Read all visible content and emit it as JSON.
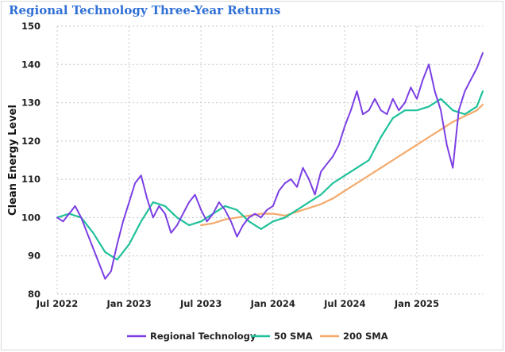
{
  "chart_data": {
    "type": "line",
    "title": "Regional Technology Three-Year Returns",
    "xlabel": "",
    "ylabel": "Clean Energy Level",
    "ylim": [
      80,
      150
    ],
    "yticks": [
      80,
      90,
      100,
      110,
      120,
      130,
      140,
      150
    ],
    "xticks": [
      {
        "label": "Jul 2022",
        "t": 0
      },
      {
        "label": "Jan 2023",
        "t": 6
      },
      {
        "label": "Jul 2023",
        "t": 12
      },
      {
        "label": "Jan 2024",
        "t": 18
      },
      {
        "label": "Jul 2024",
        "t": 24
      },
      {
        "label": "Jan 2025",
        "t": 30
      }
    ],
    "x_unit": "months since Jul 2022",
    "grid": true,
    "legend_position": "bottom",
    "series": [
      {
        "name": "Regional Technology",
        "color": "#7b3fe4",
        "x": [
          0,
          0.5,
          1,
          1.5,
          2,
          2.5,
          3,
          3.5,
          4,
          4.5,
          5,
          5.5,
          6,
          6.5,
          7,
          7.5,
          8,
          8.5,
          9,
          9.5,
          10,
          10.5,
          11,
          11.5,
          12,
          12.5,
          13,
          13.5,
          14,
          14.5,
          15,
          15.5,
          16,
          16.5,
          17,
          17.5,
          18,
          18.5,
          19,
          19.5,
          20,
          20.5,
          21,
          21.5,
          22,
          22.5,
          23,
          23.5,
          24,
          24.5,
          25,
          25.5,
          26,
          26.5,
          27,
          27.5,
          28,
          28.5,
          29,
          29.5,
          30,
          30.5,
          31,
          31.5,
          32,
          32.5,
          33,
          33.5,
          34,
          34.5,
          35,
          35.5
        ],
        "values": [
          100,
          99,
          101,
          103,
          100,
          96,
          92,
          88,
          84,
          86,
          93,
          99,
          104,
          109,
          111,
          105,
          100,
          103,
          101,
          96,
          98,
          101,
          104,
          106,
          102,
          99,
          101,
          104,
          102,
          99,
          95,
          98,
          100,
          101,
          100,
          102,
          103,
          107,
          109,
          110,
          108,
          113,
          110,
          106,
          112,
          114,
          116,
          119,
          124,
          128,
          133,
          127,
          128,
          131,
          128,
          127,
          131,
          128,
          130,
          134,
          131,
          136,
          140,
          133,
          128,
          119,
          113,
          128,
          133,
          136,
          139,
          143
        ]
      },
      {
        "name": "50 SMA",
        "color": "#1fc19a",
        "x": [
          0,
          1,
          2,
          3,
          4,
          5,
          6,
          7,
          8,
          9,
          10,
          11,
          12,
          13,
          14,
          15,
          16,
          17,
          18,
          19,
          20,
          21,
          22,
          23,
          24,
          25,
          26,
          27,
          28,
          29,
          30,
          31,
          32,
          33,
          34,
          35,
          35.5
        ],
        "values": [
          100,
          101,
          100,
          96,
          91,
          89,
          93,
          99,
          104,
          103,
          100,
          98,
          99,
          101,
          103,
          102,
          99,
          97,
          99,
          100,
          102,
          104,
          106,
          109,
          111,
          113,
          115,
          121,
          126,
          128,
          128,
          129,
          131,
          128,
          127,
          129,
          133
        ]
      },
      {
        "name": "200 SMA",
        "color": "#f5a96b",
        "x": [
          12,
          13,
          14,
          15,
          16,
          17,
          18,
          19,
          20,
          21,
          22,
          23,
          24,
          25,
          26,
          27,
          28,
          29,
          30,
          31,
          32,
          33,
          34,
          35,
          35.5
        ],
        "values": [
          98,
          98.5,
          99.5,
          100,
          100.5,
          101,
          101,
          100.5,
          101.5,
          102.5,
          103.5,
          105,
          107,
          109,
          111,
          113,
          115,
          117,
          119,
          121,
          123,
          125,
          126.5,
          128,
          129.5
        ]
      }
    ]
  }
}
